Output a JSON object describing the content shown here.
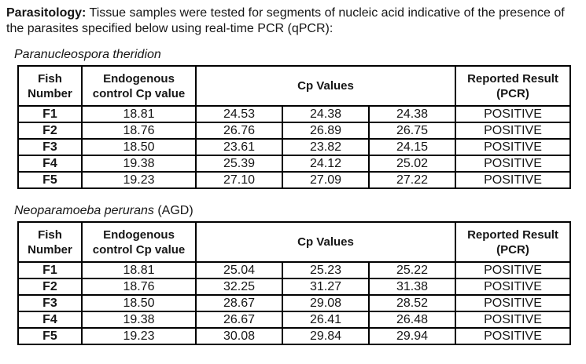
{
  "page": {
    "intro_label": "Parasitology:",
    "intro_text": "Tissue samples were tested for segments of nucleic acid indicative of the presence of the parasites specified below using real-time PCR (qPCR):"
  },
  "table_headers": {
    "fish": "Fish Number",
    "endogenous": "Endogenous control Cp value",
    "cp": "Cp Values",
    "result": "Reported Result (PCR)"
  },
  "tables": [
    {
      "title_italic": "Paranucleospora theridion",
      "title_plain": "",
      "rows": [
        [
          "F1",
          "18.81",
          "24.53",
          "24.38",
          "24.38",
          "POSITIVE"
        ],
        [
          "F2",
          "18.76",
          "26.76",
          "26.89",
          "26.75",
          "POSITIVE"
        ],
        [
          "F3",
          "18.50",
          "23.61",
          "23.82",
          "24.15",
          "POSITIVE"
        ],
        [
          "F4",
          "19.38",
          "25.39",
          "24.12",
          "25.02",
          "POSITIVE"
        ],
        [
          "F5",
          "19.23",
          "27.10",
          "27.09",
          "27.22",
          "POSITIVE"
        ]
      ]
    },
    {
      "title_italic": "Neoparamoeba perurans",
      "title_plain": " (AGD)",
      "rows": [
        [
          "F1",
          "18.81",
          "25.04",
          "25.23",
          "25.22",
          "POSITIVE"
        ],
        [
          "F2",
          "18.76",
          "32.25",
          "31.27",
          "31.38",
          "POSITIVE"
        ],
        [
          "F3",
          "18.50",
          "28.67",
          "29.08",
          "28.52",
          "POSITIVE"
        ],
        [
          "F4",
          "19.38",
          "26.67",
          "26.41",
          "26.48",
          "POSITIVE"
        ],
        [
          "F5",
          "19.23",
          "30.08",
          "29.84",
          "29.94",
          "POSITIVE"
        ]
      ]
    }
  ],
  "colors": {
    "text": "#161616",
    "border": "#000000",
    "background": "#ffffff"
  }
}
